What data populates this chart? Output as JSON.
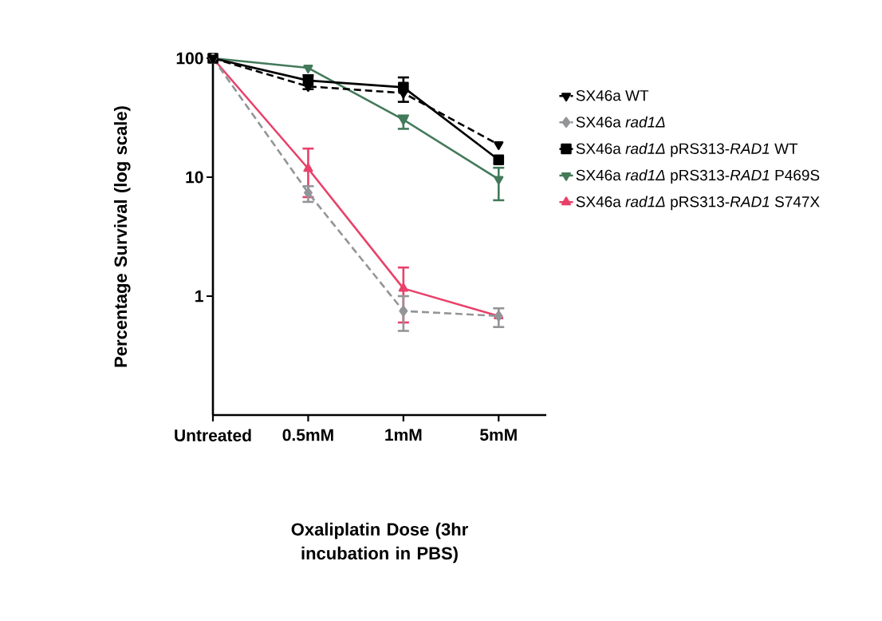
{
  "chart_data": {
    "type": "line",
    "xlabel": "Oxaliplatin Dose (3hr incubation in PBS)",
    "ylabel": "Percentage Survival (log scale)",
    "categories": [
      "Untreated",
      "0.5mM",
      "1mM",
      "5mM"
    ],
    "log": "y",
    "ylim": [
      0.1,
      100
    ],
    "yticks": [
      1,
      10,
      100
    ],
    "grid": false,
    "legend": "right",
    "series": [
      {
        "name": "SX46a WT",
        "color": "#000000",
        "marker": "triangle-down",
        "line_style": "dashed",
        "values": [
          100,
          58,
          51,
          18.8
        ]
      },
      {
        "name": "SX46a *rad1Δ*",
        "color": "#939598",
        "marker": "diamond",
        "line_style": "dashed",
        "values": [
          100,
          7.4,
          0.75,
          0.68
        ],
        "errors": [
          null,
          [
            6.2,
            8.4
          ],
          [
            0.51,
            1.0
          ],
          [
            0.55,
            0.79
          ]
        ]
      },
      {
        "name": "SX46a *rad1Δ* pRS313-*RAD1* WT",
        "color": "#000000",
        "marker": "square",
        "line_style": "solid",
        "values": [
          100,
          65,
          57,
          14
        ],
        "errors": [
          null,
          [
            55,
            72
          ],
          [
            43,
            69
          ],
          null
        ]
      },
      {
        "name": "SX46a *rad1Δ* pRS313-*RAD1* P469S",
        "color": "#437a5a",
        "marker": "triangle-down",
        "line_style": "solid",
        "values": [
          100,
          83,
          30.5,
          9.6
        ],
        "errors": [
          null,
          null,
          [
            25.5,
            33
          ],
          [
            6.4,
            12
          ]
        ]
      },
      {
        "name": "SX46a *rad1Δ* pRS313-*RAD1* S747X",
        "color": "#e8416a",
        "marker": "triangle",
        "line_style": "solid",
        "values": [
          100,
          11.8,
          1.16,
          0.68
        ],
        "errors": [
          null,
          [
            6.8,
            17.4
          ],
          [
            0.6,
            1.74
          ],
          null
        ]
      }
    ]
  }
}
